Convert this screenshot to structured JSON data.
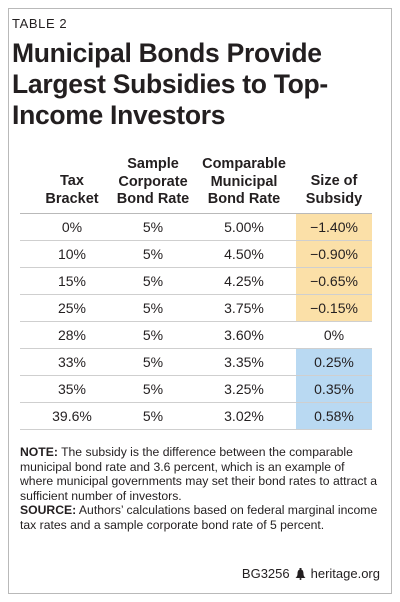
{
  "table_label": "TABLE 2",
  "title": "Municipal Bonds Provide Largest Subsidies to Top-Income Investors",
  "columns": [
    {
      "line1": "",
      "line2": "Tax",
      "line3": "Bracket"
    },
    {
      "line1": "Sample",
      "line2": "Corporate",
      "line3": "Bond Rate"
    },
    {
      "line1": "Comparable",
      "line2": "Municipal",
      "line3": "Bond Rate"
    },
    {
      "line1": "",
      "line2": "Size of",
      "line3": "Subsidy"
    }
  ],
  "rows": [
    {
      "bracket": "0%",
      "corporate": "5%",
      "municipal": "5.00%",
      "subsidy": "−1.40%",
      "shade": "negative"
    },
    {
      "bracket": "10%",
      "corporate": "5%",
      "municipal": "4.50%",
      "subsidy": "−0.90%",
      "shade": "negative"
    },
    {
      "bracket": "15%",
      "corporate": "5%",
      "municipal": "4.25%",
      "subsidy": "−0.65%",
      "shade": "negative"
    },
    {
      "bracket": "25%",
      "corporate": "5%",
      "municipal": "3.75%",
      "subsidy": "−0.15%",
      "shade": "negative"
    },
    {
      "bracket": "28%",
      "corporate": "5%",
      "municipal": "3.60%",
      "subsidy": "0%",
      "shade": "none"
    },
    {
      "bracket": "33%",
      "corporate": "5%",
      "municipal": "3.35%",
      "subsidy": "0.25%",
      "shade": "positive"
    },
    {
      "bracket": "35%",
      "corporate": "5%",
      "municipal": "3.25%",
      "subsidy": "0.35%",
      "shade": "positive"
    },
    {
      "bracket": "39.6%",
      "corporate": "5%",
      "municipal": "3.02%",
      "subsidy": "0.58%",
      "shade": "positive"
    }
  ],
  "colors": {
    "negative": "#fbe0a8",
    "positive": "#b9d9f2",
    "none": "#ffffff"
  },
  "note_label": "NOTE:",
  "note_text": " The subsidy is the difference between the comparable municipal bond rate and 3.6 percent, which is an example of where municipal governments may set their bond rates to attract a sufficient number of investors.",
  "source_label": "SOURCE:",
  "source_text": " Authors’ calculations based on federal marginal income tax rates and a sample corporate bond rate of 5 percent.",
  "footer_code": "BG3256",
  "footer_icon": "liberty-bell-icon",
  "footer_site": "heritage.org"
}
